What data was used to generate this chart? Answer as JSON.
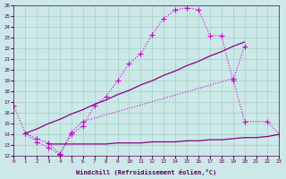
{
  "xlabel": "Windchill (Refroidissement éolien,°C)",
  "background_color": "#cce8e8",
  "line_color1": "#cc00cc",
  "line_color2": "#880088",
  "xlim": [
    0,
    23
  ],
  "ylim": [
    12,
    26
  ],
  "xticks": [
    0,
    1,
    2,
    3,
    4,
    5,
    6,
    7,
    8,
    9,
    10,
    11,
    12,
    13,
    14,
    15,
    16,
    17,
    18,
    19,
    20,
    21,
    22,
    23
  ],
  "yticks": [
    12,
    13,
    14,
    15,
    16,
    17,
    18,
    19,
    20,
    21,
    22,
    23,
    24,
    25,
    26
  ],
  "curve1_x": [
    0,
    1,
    2,
    3,
    4,
    5,
    6,
    7,
    8,
    9,
    10,
    11,
    12,
    13,
    14,
    15,
    16,
    17,
    18,
    19,
    20
  ],
  "curve1_y": [
    16.7,
    14.1,
    13.3,
    12.8,
    12.1,
    14.0,
    14.8,
    16.7,
    17.5,
    19.0,
    20.6,
    21.5,
    23.3,
    24.8,
    25.6,
    25.8,
    25.6,
    23.2,
    23.2,
    19.0,
    22.2
  ],
  "curve2_x": [
    1,
    2,
    3,
    4,
    5,
    6,
    19,
    20,
    22,
    23
  ],
  "curve2_y": [
    14.1,
    13.6,
    13.2,
    12.2,
    14.2,
    15.2,
    19.2,
    15.2,
    15.2,
    14.0
  ],
  "curve3_x": [
    1,
    2,
    3,
    4,
    5,
    6,
    7,
    8,
    9,
    10,
    11,
    12,
    13,
    14,
    15,
    16,
    17,
    18,
    19,
    20
  ],
  "curve3_y": [
    14.1,
    14.5,
    15.0,
    15.4,
    15.9,
    16.3,
    16.8,
    17.2,
    17.7,
    18.1,
    18.6,
    19.0,
    19.5,
    19.9,
    20.4,
    20.8,
    21.3,
    21.7,
    22.2,
    22.6
  ],
  "curve4_x": [
    3,
    4,
    5,
    6,
    7,
    8,
    9,
    10,
    11,
    12,
    13,
    14,
    15,
    16,
    17,
    18,
    19,
    20,
    21,
    22,
    23
  ],
  "curve4_y": [
    13.1,
    13.1,
    13.1,
    13.1,
    13.1,
    13.1,
    13.2,
    13.2,
    13.2,
    13.3,
    13.3,
    13.3,
    13.4,
    13.4,
    13.5,
    13.5,
    13.6,
    13.7,
    13.7,
    13.8,
    14.0
  ]
}
